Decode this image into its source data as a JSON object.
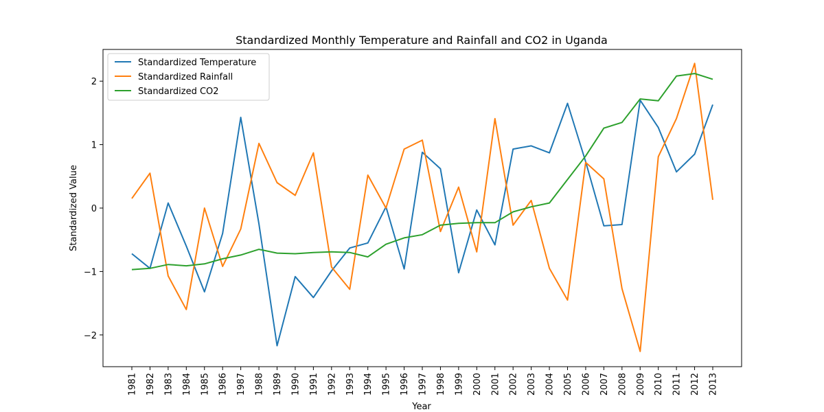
{
  "chart_data": {
    "type": "line",
    "title": "Standardized Monthly Temperature and Rainfall and CO2 in Uganda",
    "xlabel": "Year",
    "ylabel": "Standardized Value",
    "ylim": [
      -2.5,
      2.5
    ],
    "yticks": [
      -2,
      -1,
      0,
      1,
      2
    ],
    "ytick_labels": [
      "−2",
      "−1",
      "0",
      "1",
      "2"
    ],
    "grid": false,
    "legend_position": "top-left",
    "x": [
      "1981",
      "1982",
      "1983",
      "1984",
      "1985",
      "1986",
      "1987",
      "1988",
      "1989",
      "1990",
      "1991",
      "1992",
      "1993",
      "1994",
      "1995",
      "1996",
      "1997",
      "1998",
      "1999",
      "2000",
      "2001",
      "2002",
      "2003",
      "2004",
      "2005",
      "2006",
      "2007",
      "2008",
      "2009",
      "2010",
      "2011",
      "2012",
      "2013"
    ],
    "series": [
      {
        "name": "Standardized Temperature",
        "color": "#1f77b4",
        "values": [
          -0.72,
          -0.95,
          0.08,
          -0.6,
          -1.32,
          -0.4,
          1.43,
          -0.25,
          -2.17,
          -1.08,
          -1.41,
          -0.99,
          -0.63,
          -0.55,
          0.02,
          -0.96,
          0.88,
          0.62,
          -1.02,
          -0.03,
          -0.58,
          0.93,
          0.98,
          0.87,
          1.65,
          0.73,
          -0.28,
          -0.26,
          1.7,
          1.27,
          0.57,
          0.85,
          1.63
        ]
      },
      {
        "name": "Standardized Rainfall",
        "color": "#ff7f0e",
        "values": [
          0.15,
          0.55,
          -1.07,
          -1.6,
          0.0,
          -0.92,
          -0.33,
          1.02,
          0.4,
          0.2,
          0.87,
          -0.93,
          -1.28,
          0.52,
          0.0,
          0.93,
          1.07,
          -0.37,
          0.33,
          -0.69,
          1.41,
          -0.27,
          0.12,
          -0.95,
          -1.45,
          0.72,
          0.46,
          -1.27,
          -2.26,
          0.81,
          1.41,
          2.28,
          0.13
        ]
      },
      {
        "name": "Standardized CO2",
        "color": "#2ca02c",
        "values": [
          -0.97,
          -0.95,
          -0.89,
          -0.91,
          -0.88,
          -0.8,
          -0.74,
          -0.65,
          -0.71,
          -0.72,
          -0.7,
          -0.69,
          -0.7,
          -0.77,
          -0.57,
          -0.47,
          -0.42,
          -0.27,
          -0.24,
          -0.23,
          -0.23,
          -0.06,
          0.02,
          0.08,
          0.45,
          0.82,
          1.26,
          1.35,
          1.72,
          1.69,
          2.08,
          2.12,
          2.03
        ]
      }
    ]
  }
}
